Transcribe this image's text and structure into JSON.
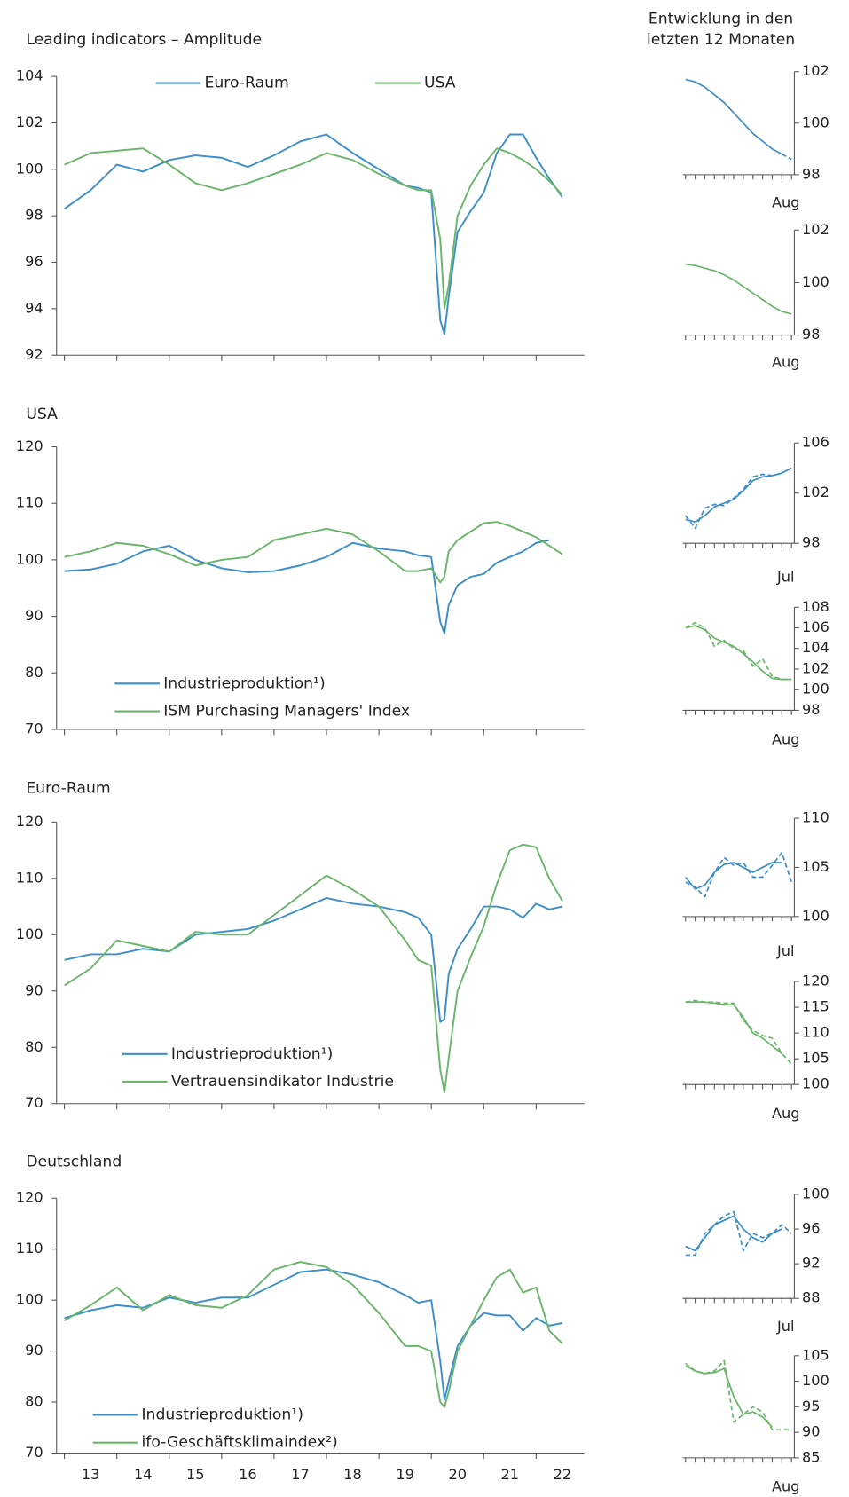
{
  "side_title": [
    "Entwicklung in den",
    "letzten 12 Monaten"
  ],
  "chart_data": [
    {
      "type": "line",
      "title": "Leading indicators – Amplitude",
      "legend": "upper center",
      "x": [
        13,
        13.5,
        14,
        14.5,
        15,
        15.5,
        16,
        16.5,
        17,
        17.5,
        18,
        18.5,
        19,
        19.5,
        19.75,
        20,
        20.17,
        20.25,
        20.33,
        20.5,
        20.75,
        21,
        21.25,
        21.5,
        21.75,
        22,
        22.25,
        22.5
      ],
      "xlim": [
        12.85,
        22.92
      ],
      "ylim": [
        92,
        104
      ],
      "yticks": [
        92,
        94,
        96,
        98,
        100,
        102,
        104
      ],
      "series": [
        {
          "name": "Euro-Raum",
          "color": "#3d8fca",
          "values": [
            98.3,
            99.1,
            100.2,
            99.9,
            100.4,
            100.6,
            100.5,
            100.1,
            100.6,
            101.2,
            101.5,
            100.7,
            100.0,
            99.3,
            99.2,
            99.0,
            93.5,
            92.9,
            94.5,
            97.3,
            98.2,
            99.0,
            100.7,
            101.5,
            101.5,
            100.5,
            99.6,
            98.8
          ]
        },
        {
          "name": "USA",
          "color": "#6ab66a",
          "values": [
            100.2,
            100.7,
            100.8,
            100.9,
            100.2,
            99.4,
            99.1,
            99.4,
            99.8,
            100.2,
            100.7,
            100.4,
            99.8,
            99.3,
            99.1,
            99.1,
            97.0,
            94.0,
            95.0,
            98.0,
            99.3,
            100.2,
            100.9,
            100.7,
            100.4,
            100.0,
            99.5,
            98.9
          ]
        }
      ]
    },
    {
      "type": "line",
      "title": "USA",
      "legend": "lower left",
      "x": [
        13,
        13.5,
        14,
        14.5,
        15,
        15.5,
        16,
        16.5,
        17,
        17.5,
        18,
        18.5,
        19,
        19.5,
        19.75,
        20,
        20.17,
        20.25,
        20.33,
        20.5,
        20.75,
        21,
        21.25,
        21.5,
        21.75,
        22,
        22.25,
        22.5
      ],
      "xlim": [
        12.85,
        22.92
      ],
      "ylim": [
        70,
        120
      ],
      "yticks": [
        70,
        80,
        90,
        100,
        110,
        120
      ],
      "series": [
        {
          "name": "Industrieproduktion¹)",
          "color": "#3d8fca",
          "values": [
            98,
            98.3,
            99.3,
            101.5,
            102.5,
            100,
            98.5,
            97.8,
            98,
            99,
            100.5,
            103,
            102,
            101.5,
            100.8,
            100.5,
            89,
            87,
            92,
            95.5,
            97,
            97.5,
            99.5,
            100.5,
            101.5,
            103,
            103.5,
            null
          ]
        },
        {
          "name": "ISM Purchasing Managers' Index",
          "color": "#6ab66a",
          "values": [
            100.5,
            101.5,
            103,
            102.5,
            101,
            99,
            100,
            100.5,
            103.5,
            104.5,
            105.5,
            104.5,
            101.5,
            98,
            98,
            98.5,
            96,
            97,
            101.5,
            103.5,
            105,
            106.5,
            106.7,
            106,
            105,
            104,
            102.5,
            101
          ]
        }
      ]
    },
    {
      "type": "line",
      "title": "Euro-Raum",
      "legend": "lower left",
      "x": [
        13,
        13.5,
        14,
        14.5,
        15,
        15.5,
        16,
        16.5,
        17,
        17.5,
        18,
        18.5,
        19,
        19.5,
        19.75,
        20,
        20.17,
        20.25,
        20.33,
        20.5,
        20.75,
        21,
        21.25,
        21.5,
        21.75,
        22,
        22.25,
        22.5
      ],
      "xlim": [
        12.85,
        22.92
      ],
      "ylim": [
        70,
        120
      ],
      "yticks": [
        70,
        80,
        90,
        100,
        110,
        120
      ],
      "series": [
        {
          "name": "Industrieproduktion¹)",
          "color": "#3d8fca",
          "values": [
            95.5,
            96.5,
            96.5,
            97.5,
            97,
            100,
            100.5,
            101,
            102.5,
            104.5,
            106.5,
            105.5,
            105,
            104,
            103,
            100,
            84.5,
            85,
            93,
            97.5,
            101,
            105,
            105,
            104.5,
            103,
            105.5,
            104.5,
            105
          ]
        },
        {
          "name": "Vertrauensindikator Industrie",
          "color": "#6ab66a",
          "values": [
            91,
            94,
            99,
            98,
            97,
            100.5,
            100,
            100,
            103.5,
            107,
            110.5,
            108,
            105,
            99,
            95.5,
            94.5,
            76,
            72,
            78,
            90,
            96,
            101.5,
            109,
            115,
            116,
            115.5,
            110,
            106
          ]
        }
      ]
    },
    {
      "type": "line",
      "title": "Deutschland",
      "legend": "lower left",
      "x": [
        13,
        13.5,
        14,
        14.5,
        15,
        15.5,
        16,
        16.5,
        17,
        17.5,
        18,
        18.5,
        19,
        19.5,
        19.75,
        20,
        20.17,
        20.25,
        20.33,
        20.5,
        20.75,
        21,
        21.25,
        21.5,
        21.75,
        22,
        22.25,
        22.5
      ],
      "xlim": [
        12.85,
        22.92
      ],
      "xticks": [
        13,
        14,
        15,
        16,
        17,
        18,
        19,
        20,
        21,
        22
      ],
      "ylim": [
        70,
        120
      ],
      "yticks": [
        70,
        80,
        90,
        100,
        110,
        120
      ],
      "series": [
        {
          "name": "Industrieproduktion¹)",
          "color": "#3d8fca",
          "values": [
            96.5,
            98,
            99,
            98.5,
            100.5,
            99.5,
            100.5,
            100.5,
            103,
            105.5,
            106,
            105,
            103.5,
            101,
            99.5,
            100,
            88,
            80.5,
            84,
            91,
            95,
            97.5,
            97,
            97,
            94,
            96.5,
            95,
            95.5
          ]
        },
        {
          "name": "ifo-Geschäftsklimaindex²)",
          "color": "#6ab66a",
          "values": [
            96,
            99,
            102.5,
            98,
            101,
            99,
            98.5,
            101,
            106,
            107.5,
            106.5,
            103,
            97.5,
            91,
            91,
            90,
            80,
            79,
            82,
            90,
            95,
            100,
            104.5,
            106,
            101.5,
            102.5,
            94,
            91.5
          ]
        }
      ]
    },
    {
      "type": "line",
      "yaxis": "right",
      "categories": [
        null,
        null,
        null,
        null,
        null,
        null,
        null,
        null,
        null,
        null,
        null,
        "Aug"
      ],
      "ylim": [
        98,
        102
      ],
      "yticks": [
        98,
        100,
        102
      ],
      "series": [
        {
          "color": "#3d8fca",
          "style": "solid",
          "values": [
            101.7,
            101.6,
            101.4,
            101.1,
            100.8,
            100.4,
            100.0,
            99.6,
            99.3,
            99.0,
            98.8,
            null
          ]
        },
        {
          "color": "#3d8fca",
          "style": "dashed",
          "values": [
            null,
            null,
            null,
            null,
            null,
            null,
            null,
            null,
            null,
            null,
            98.8,
            98.6
          ]
        }
      ]
    },
    {
      "type": "line",
      "yaxis": "right",
      "categories": [
        null,
        null,
        null,
        null,
        null,
        null,
        null,
        null,
        null,
        null,
        null,
        "Aug"
      ],
      "ylim": [
        98,
        102
      ],
      "yticks": [
        98,
        100,
        102
      ],
      "series": [
        {
          "color": "#6ab66a",
          "style": "solid",
          "values": [
            100.7,
            100.65,
            100.55,
            100.45,
            100.3,
            100.1,
            99.85,
            99.6,
            99.35,
            99.1,
            98.9,
            98.8
          ]
        }
      ]
    },
    {
      "type": "line",
      "yaxis": "right",
      "categories": [
        null,
        null,
        null,
        null,
        null,
        null,
        null,
        null,
        null,
        null,
        null,
        "Jul"
      ],
      "ylim": [
        98,
        106
      ],
      "yticks": [
        98,
        102,
        106
      ],
      "series": [
        {
          "color": "#3d8fca",
          "style": "solid",
          "values": [
            99.9,
            99.7,
            100.2,
            100.9,
            101.2,
            101.5,
            102.2,
            103.0,
            103.3,
            103.4,
            103.6,
            104.0
          ]
        },
        {
          "color": "#3d8fca",
          "style": "dashed",
          "values": [
            100.2,
            99.2,
            100.8,
            101.1,
            101.0,
            101.6,
            102.3,
            103.3,
            103.5,
            103.4,
            103.6,
            104.0
          ]
        }
      ]
    },
    {
      "type": "line",
      "yaxis": "right",
      "categories": [
        null,
        null,
        null,
        null,
        null,
        null,
        null,
        null,
        null,
        null,
        null,
        "Aug"
      ],
      "ylim": [
        98,
        108
      ],
      "yticks": [
        98,
        100,
        102,
        104,
        106,
        108
      ],
      "series": [
        {
          "color": "#6ab66a",
          "style": "solid",
          "values": [
            106.0,
            106.2,
            105.8,
            105.0,
            104.6,
            104.2,
            103.5,
            102.7,
            101.8,
            101.1,
            101.0,
            101.0
          ]
        },
        {
          "color": "#6ab66a",
          "style": "dashed",
          "values": [
            106.0,
            106.5,
            106.0,
            104.2,
            104.8,
            104.0,
            103.8,
            102.3,
            103.0,
            101.3,
            101.0,
            101.0
          ]
        }
      ]
    },
    {
      "type": "line",
      "yaxis": "right",
      "categories": [
        null,
        null,
        null,
        null,
        null,
        null,
        null,
        null,
        null,
        null,
        null,
        "Jul"
      ],
      "ylim": [
        100,
        110
      ],
      "yticks": [
        100,
        105,
        110
      ],
      "series": [
        {
          "color": "#3d8fca",
          "style": "solid",
          "values": [
            104.0,
            102.8,
            103.2,
            104.5,
            105.3,
            105.5,
            105.0,
            104.5,
            105.0,
            105.5,
            105.5,
            null
          ]
        },
        {
          "color": "#3d8fca",
          "style": "dashed",
          "values": [
            103.5,
            103.0,
            102.0,
            104.5,
            106.0,
            105.2,
            105.5,
            104.0,
            104.0,
            105.2,
            106.5,
            103.5
          ]
        }
      ]
    },
    {
      "type": "line",
      "yaxis": "right",
      "categories": [
        null,
        null,
        null,
        null,
        null,
        null,
        null,
        null,
        null,
        null,
        null,
        "Aug"
      ],
      "ylim": [
        100,
        120
      ],
      "yticks": [
        100,
        105,
        110,
        115,
        120
      ],
      "series": [
        {
          "color": "#6ab66a",
          "style": "solid",
          "values": [
            116,
            116,
            116,
            115.8,
            115.5,
            115.5,
            113,
            110,
            109,
            107.5,
            106,
            null
          ]
        },
        {
          "color": "#6ab66a",
          "style": "dashed",
          "values": [
            116,
            116.3,
            116,
            116,
            115.8,
            115.8,
            112.5,
            110.5,
            109.5,
            109,
            106,
            104
          ]
        }
      ]
    },
    {
      "type": "line",
      "yaxis": "right",
      "categories": [
        null,
        null,
        null,
        null,
        null,
        null,
        null,
        null,
        null,
        null,
        null,
        "Jul"
      ],
      "ylim": [
        88,
        100
      ],
      "yticks": [
        88,
        92,
        96,
        100
      ],
      "series": [
        {
          "color": "#3d8fca",
          "style": "solid",
          "values": [
            94,
            93.5,
            95,
            96.5,
            97,
            97.5,
            96,
            95,
            94.5,
            95.5,
            96,
            null
          ]
        },
        {
          "color": "#3d8fca",
          "style": "dashed",
          "values": [
            93,
            93,
            95.5,
            96.5,
            97.5,
            98,
            93.5,
            95.5,
            95,
            95.5,
            96.5,
            95.5
          ]
        }
      ]
    },
    {
      "type": "line",
      "yaxis": "right",
      "categories": [
        null,
        null,
        null,
        null,
        null,
        null,
        null,
        null,
        null,
        null,
        null,
        "Aug"
      ],
      "ylim": [
        85,
        105
      ],
      "yticks": [
        85,
        90,
        95,
        100,
        105
      ],
      "series": [
        {
          "color": "#6ab66a",
          "style": "solid",
          "values": [
            103,
            102,
            101.5,
            101.7,
            102.5,
            97,
            93.5,
            94,
            93,
            91,
            null,
            null
          ]
        },
        {
          "color": "#6ab66a",
          "style": "dashed",
          "values": [
            103.5,
            102,
            101.5,
            102,
            104,
            92,
            93.5,
            95,
            94,
            90.5,
            90.5,
            90.5
          ]
        }
      ]
    }
  ]
}
